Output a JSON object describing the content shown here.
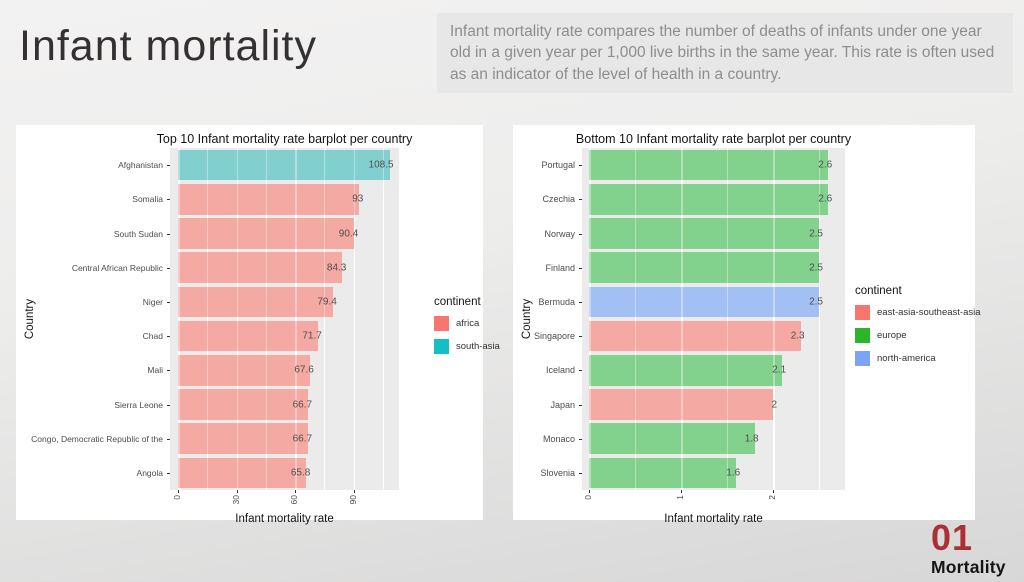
{
  "slide": {
    "title": "Infant mortality",
    "description": "Infant mortality rate compares the number of deaths of infants under one year old in a given year per 1,000 live births in the same year. This rate is often used as an indicator of the level of health in a country.",
    "badge": {
      "number": "01",
      "label": "Mortality",
      "number_color": "#ac2f36"
    }
  },
  "chart_data": [
    {
      "type": "bar",
      "orientation": "horizontal",
      "title": "Top 10 Infant mortality rate barplot per country",
      "xlabel": "Infant mortality rate",
      "ylabel": "Country",
      "xlim": [
        0,
        114
      ],
      "xticks": [
        0,
        30,
        60,
        90
      ],
      "grid": true,
      "panel_background": "#ebebeb",
      "legend_position": "right",
      "legend_title": "continent",
      "legend": [
        {
          "label": "africa",
          "color": "#f8766d"
        },
        {
          "label": "south-asia",
          "color": "#14bfc4"
        }
      ],
      "bar_fill": {
        "africa": "#f5a9a3",
        "south-asia": "#82cfcf"
      },
      "bars": [
        {
          "country": "Afghanistan",
          "value": 108.5,
          "continent": "south-asia"
        },
        {
          "country": "Somalia",
          "value": 93,
          "continent": "africa"
        },
        {
          "country": "South Sudan",
          "value": 90.4,
          "continent": "africa"
        },
        {
          "country": "Central African Republic",
          "value": 84.3,
          "continent": "africa"
        },
        {
          "country": "Niger",
          "value": 79.4,
          "continent": "africa"
        },
        {
          "country": "Chad",
          "value": 71.7,
          "continent": "africa"
        },
        {
          "country": "Mali",
          "value": 67.6,
          "continent": "africa"
        },
        {
          "country": "Sierra Leone",
          "value": 66.7,
          "continent": "africa"
        },
        {
          "country": "Congo, Democratic Republic of the",
          "value": 66.7,
          "continent": "africa"
        },
        {
          "country": "Angola",
          "value": 65.8,
          "continent": "africa"
        }
      ]
    },
    {
      "type": "bar",
      "orientation": "horizontal",
      "title": "Bottom 10 Infant mortality rate barplot per country",
      "xlabel": "Infant mortality rate",
      "ylabel": "Country",
      "xlim": [
        0,
        2.78
      ],
      "xticks": [
        0,
        1,
        2
      ],
      "grid": true,
      "panel_background": "#ebebeb",
      "legend_position": "right",
      "legend_title": "continent",
      "legend": [
        {
          "label": "east-asia-southeast-asia",
          "color": "#f8766d"
        },
        {
          "label": "europe",
          "color": "#2bb42c"
        },
        {
          "label": "north-america",
          "color": "#7ca3f5"
        }
      ],
      "bar_fill": {
        "europe": "#82d18d",
        "north-america": "#a3c0f4",
        "east-asia-southeast-asia": "#f5a9a3"
      },
      "bars": [
        {
          "country": "Portugal",
          "value": 2.6,
          "continent": "europe"
        },
        {
          "country": "Czechia",
          "value": 2.6,
          "continent": "europe"
        },
        {
          "country": "Norway",
          "value": 2.5,
          "continent": "europe"
        },
        {
          "country": "Finland",
          "value": 2.5,
          "continent": "europe"
        },
        {
          "country": "Bermuda",
          "value": 2.5,
          "continent": "north-america"
        },
        {
          "country": "Singapore",
          "value": 2.3,
          "continent": "east-asia-southeast-asia"
        },
        {
          "country": "Iceland",
          "value": 2.1,
          "continent": "europe"
        },
        {
          "country": "Japan",
          "value": 2,
          "continent": "east-asia-southeast-asia"
        },
        {
          "country": "Monaco",
          "value": 1.8,
          "continent": "europe"
        },
        {
          "country": "Slovenia",
          "value": 1.6,
          "continent": "europe"
        }
      ]
    }
  ]
}
